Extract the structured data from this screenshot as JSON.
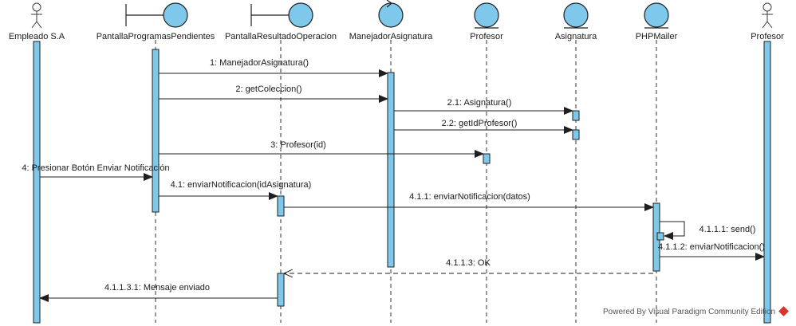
{
  "participants": [
    {
      "id": "empleado",
      "label": "Empleado S.A",
      "kind": "actor"
    },
    {
      "id": "pantallaPP",
      "label": "PantallaProgramasPendientes",
      "kind": "boundary"
    },
    {
      "id": "pantallaRO",
      "label": "PantallaResultadoOperacion",
      "kind": "boundary"
    },
    {
      "id": "manejador",
      "label": "ManejadorAsignatura",
      "kind": "control"
    },
    {
      "id": "profesorEnt",
      "label": "Profesor",
      "kind": "entity"
    },
    {
      "id": "asignatura",
      "label": "Asignatura",
      "kind": "entity"
    },
    {
      "id": "phpmailer",
      "label": "PHPMailer",
      "kind": "entity"
    },
    {
      "id": "profesorAct",
      "label": "Profesor",
      "kind": "actor"
    }
  ],
  "messages": [
    {
      "from": "pantallaPP",
      "to": "manejador",
      "label": "1: ManejadorAsignatura()",
      "type": "sync"
    },
    {
      "from": "pantallaPP",
      "to": "manejador",
      "label": "2: getColeccion()",
      "type": "sync"
    },
    {
      "from": "manejador",
      "to": "asignatura",
      "label": "2.1: Asignatura()",
      "type": "sync"
    },
    {
      "from": "manejador",
      "to": "asignatura",
      "label": "2.2: getIdProfesor()",
      "type": "sync"
    },
    {
      "from": "pantallaPP",
      "to": "profesorEnt",
      "label": "3: Profesor(id)",
      "type": "sync"
    },
    {
      "from": "empleado",
      "to": "pantallaPP",
      "label": "4: Presionar Botón Enviar Notificación",
      "type": "sync"
    },
    {
      "from": "pantallaPP",
      "to": "pantallaRO",
      "label": "4.1: enviarNotificacion(idAsignatura)",
      "type": "sync"
    },
    {
      "from": "pantallaRO",
      "to": "phpmailer",
      "label": "4.1.1: enviarNotificacion(datos)",
      "type": "sync"
    },
    {
      "from": "phpmailer",
      "to": "phpmailer",
      "label": "4.1.1.1: send()",
      "type": "self"
    },
    {
      "from": "phpmailer",
      "to": "profesorAct",
      "label": "4.1.1.2: enviarNotificacion()",
      "type": "sync"
    },
    {
      "from": "phpmailer",
      "to": "pantallaRO",
      "label": "4.1.1.3: OK",
      "type": "return"
    },
    {
      "from": "pantallaRO",
      "to": "empleado",
      "label": "4.1.1.3.1: Mensaje enviado",
      "type": "sync"
    }
  ],
  "watermark": {
    "text": "Powered By  Visual Paradigm Community Edition",
    "logo": "visual-paradigm-logo"
  },
  "colors": {
    "participant_fill": "#7ec8ec",
    "stroke": "#1f1f1f",
    "activation_fill": "#7ec8ec"
  }
}
